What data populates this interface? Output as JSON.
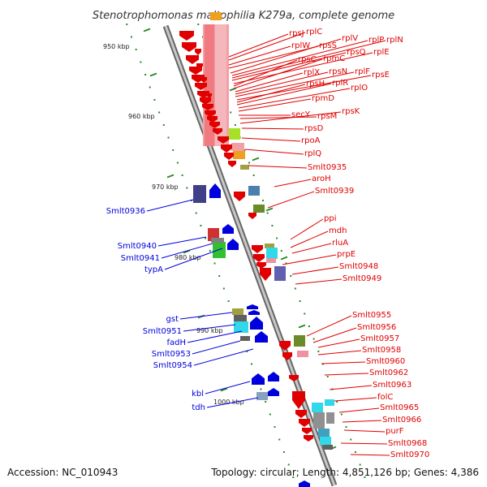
{
  "title": "Stenotrophomonas maltophilia K279a, complete genome",
  "accession": "Accession: NC_010943",
  "summary": "Topology: circular; Length: 4,851,126 bp; Genes: 4,386",
  "colors": {
    "forward": "#e00000",
    "reverse": "#0000dd",
    "backbone": "#888888",
    "tick": "#2a8a2a"
  },
  "scale_labels": [
    "950 kbp",
    "960 kbp",
    "970 kbp",
    "980 kbp",
    "990 kbp",
    "1000 kbp"
  ],
  "forward_labels": [
    "rpsJ",
    "rplC",
    "rplW",
    "rpsS",
    "rplV",
    "rplP",
    "rplN",
    "rpsQ",
    "rplE",
    "rpsC",
    "rpmC",
    "rplX",
    "rpsN",
    "rplF",
    "rpsE",
    "rpsH",
    "rplR",
    "rplO",
    "rpmD",
    "secY",
    "rpsM",
    "rpsK",
    "rpsD",
    "rpoA",
    "rplQ",
    "Smlt0935",
    "aroH",
    "Smlt0939",
    "ppi",
    "mdh",
    "rluA",
    "prpE",
    "Smlt0948",
    "Smlt0949",
    "Smlt0955",
    "Smlt0956",
    "Smlt0957",
    "Smlt0958",
    "Smlt0960",
    "Smlt0962",
    "Smlt0963",
    "folC",
    "Smlt0965",
    "Smlt0966",
    "purF",
    "Smlt0968",
    "Smlt0970"
  ],
  "reverse_labels": [
    "Smlt0936",
    "Smlt0940",
    "Smlt0941",
    "typA",
    "gst",
    "Smlt0951",
    "fadH",
    "Smlt0953",
    "Smlt0954",
    "kbl",
    "tdh"
  ]
}
